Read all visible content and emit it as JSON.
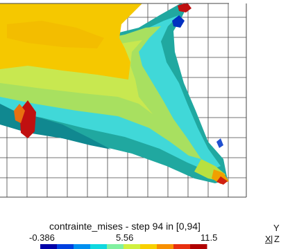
{
  "colorbar": {
    "title": "contrainte_mises - step 94 in [0,94]",
    "ticks": [
      "-0.386",
      "5.56",
      "11.5"
    ],
    "min": -0.386,
    "mid": 5.56,
    "max": 11.5,
    "colors": [
      "#0000a8",
      "#0040e0",
      "#0090f0",
      "#10d8e0",
      "#80f0a0",
      "#d0f040",
      "#f8d000",
      "#f89000",
      "#e83010",
      "#b00000"
    ]
  },
  "axis_triad": {
    "up": "Y",
    "right": "X",
    "depth": "Z"
  },
  "palette": {
    "yellow": "#f5c800",
    "green": "#b8e060",
    "cyan": "#40d8d8",
    "teal": "#20a8a0",
    "red": "#c01010",
    "grid": "#444444"
  }
}
